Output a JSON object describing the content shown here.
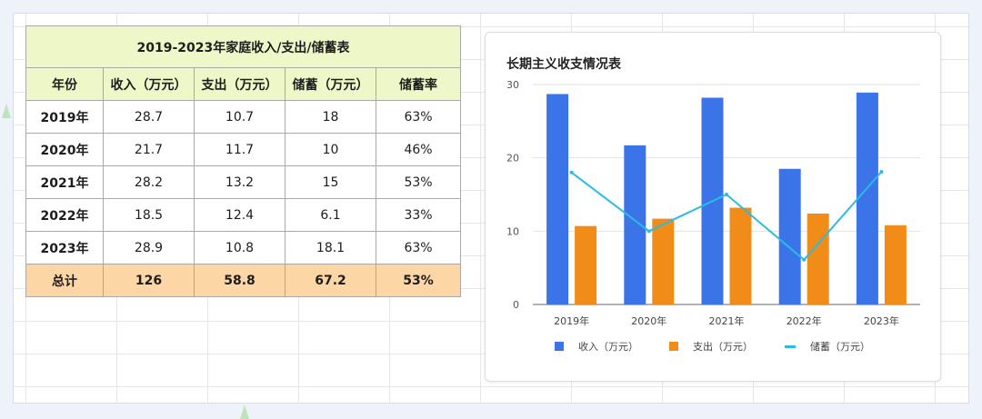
{
  "table": {
    "title": "2019-2023年家庭收入/支出/储蓄表",
    "headers": [
      "年份",
      "收入（万元）",
      "支出（万元）",
      "储蓄（万元）",
      "储蓄率"
    ],
    "rows": [
      [
        "2019年",
        "28.7",
        "10.7",
        "18",
        "63%"
      ],
      [
        "2020年",
        "21.7",
        "11.7",
        "10",
        "46%"
      ],
      [
        "2021年",
        "28.2",
        "13.2",
        "15",
        "53%"
      ],
      [
        "2022年",
        "18.5",
        "12.4",
        "6.1",
        "33%"
      ],
      [
        "2023年",
        "28.9",
        "10.8",
        "18.1",
        "63%"
      ]
    ],
    "total": [
      "总计",
      "126",
      "58.8",
      "67.2",
      "53%"
    ]
  },
  "chart_data": {
    "type": "bar",
    "title": "长期主义收支情况表",
    "categories": [
      "2019年",
      "2020年",
      "2021年",
      "2022年",
      "2023年"
    ],
    "series": [
      {
        "name": "收入（万元）",
        "type": "bar",
        "color": "#3b73e8",
        "values": [
          28.7,
          21.7,
          28.2,
          18.5,
          28.9
        ]
      },
      {
        "name": "支出（万元）",
        "type": "bar",
        "color": "#f08c17",
        "values": [
          10.7,
          11.7,
          13.2,
          12.4,
          10.8
        ]
      },
      {
        "name": "储蓄（万元）",
        "type": "line",
        "color": "#2bbbe3",
        "values": [
          18,
          10,
          15,
          6.1,
          18.1
        ]
      }
    ],
    "yticks": [
      "0",
      "10",
      "20",
      "30"
    ],
    "ylim": [
      0,
      30
    ],
    "grid": true,
    "legend_position": "bottom"
  },
  "colors": {
    "header_bg": "#eef7c8",
    "total_bg": "#fdd6a6",
    "income": "#3b73e8",
    "expense": "#f08c17",
    "savings": "#2bbbe3"
  }
}
